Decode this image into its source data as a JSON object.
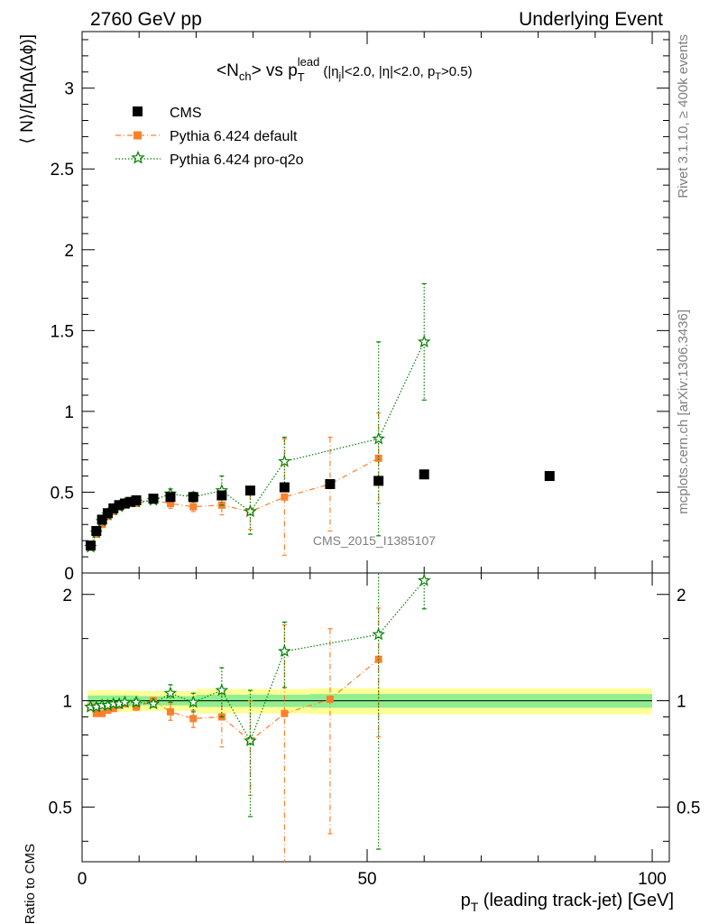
{
  "header": {
    "left": "2760 GeV pp",
    "right": "Underlying Event"
  },
  "side": {
    "rivet": "Rivet 3.1.10, ≥ 400k events",
    "mcplots": "mcplots.cern.ch [arXiv:1306.3436]"
  },
  "plot_title": {
    "main": "<N",
    "sub_ch": "ch",
    "mid": "> vs p",
    "sub_t": "T",
    "sup_lead": "lead",
    "cuts": "(|η",
    "cuts_sub": "j",
    "cuts_rest": "|<2.0, |η|<2.0, p",
    "cuts_sub2": "T",
    "cuts_end": ">0.5)"
  },
  "watermark": "CMS_2015_I1385107",
  "chart_data": [
    {
      "type": "scatter",
      "panel": "main",
      "ylabel": "⟨ N⟩/[ΔηΔ(Δϕ)]",
      "xlim": [
        0,
        103
      ],
      "ylim": [
        0,
        3.35
      ],
      "yticks": [
        0,
        0.5,
        1,
        1.5,
        2,
        2.5,
        3
      ],
      "ytick_labels": [
        "0",
        "0.5",
        "1",
        "1.5",
        "2",
        "2.5",
        "3"
      ],
      "legend_position": "top-left",
      "series": [
        {
          "name": "CMS",
          "color": "#000000",
          "marker": "square",
          "x": [
            1.5,
            2.5,
            3.5,
            4.5,
            5.5,
            6.5,
            7.5,
            8.5,
            9.5,
            12.5,
            15.5,
            19.5,
            24.5,
            29.5,
            35.5,
            43.5,
            52.0,
            60.0,
            82.0
          ],
          "y": [
            0.17,
            0.26,
            0.33,
            0.37,
            0.4,
            0.42,
            0.43,
            0.44,
            0.45,
            0.46,
            0.47,
            0.47,
            0.48,
            0.51,
            0.53,
            0.55,
            0.57,
            0.61,
            0.6
          ]
        },
        {
          "name": "Pythia 6.424 default",
          "color": "#ff7f2a",
          "marker": "square-small",
          "line": "dash-dot",
          "x": [
            1.5,
            2.5,
            3.5,
            4.5,
            5.5,
            6.5,
            7.5,
            9.5,
            12.5,
            15.5,
            19.5,
            24.5,
            29.5,
            35.5,
            43.5,
            52.0
          ],
          "y": [
            0.16,
            0.24,
            0.3,
            0.35,
            0.38,
            0.41,
            0.42,
            0.43,
            0.45,
            0.43,
            0.41,
            0.42,
            0.38,
            0.47,
            0.55,
            0.71
          ],
          "yerr": [
            0.005,
            0.005,
            0.005,
            0.005,
            0.005,
            0.005,
            0.005,
            0.01,
            0.01,
            0.03,
            0.03,
            0.06,
            0.11,
            0.36,
            0.29,
            0.28
          ]
        },
        {
          "name": "Pythia 6.424 pro-q2o",
          "color": "#008000",
          "marker": "star",
          "line": "dotted",
          "x": [
            1.5,
            2.5,
            3.5,
            4.5,
            5.5,
            6.5,
            7.5,
            9.5,
            12.5,
            15.5,
            19.5,
            24.5,
            29.5,
            35.5,
            52.0,
            60.0
          ],
          "y": [
            0.16,
            0.25,
            0.32,
            0.36,
            0.39,
            0.41,
            0.43,
            0.44,
            0.45,
            0.49,
            0.47,
            0.51,
            0.38,
            0.69,
            0.83,
            1.43
          ],
          "yerr": [
            0.005,
            0.005,
            0.005,
            0.005,
            0.005,
            0.005,
            0.005,
            0.01,
            0.01,
            0.03,
            0.03,
            0.09,
            0.14,
            0.15,
            0.6,
            0.36
          ]
        }
      ]
    },
    {
      "type": "scatter",
      "panel": "ratio",
      "ylabel": "Ratio to CMS",
      "xlabel": "p_T (leading track-jet) [GeV]",
      "xlim": [
        0,
        103
      ],
      "ylim": [
        0.35,
        2.3
      ],
      "xticks": [
        0,
        50,
        100
      ],
      "xtick_labels": [
        "0",
        "50",
        "100"
      ],
      "yticks": [
        0.5,
        1,
        2
      ],
      "ytick_labels": [
        "0.5",
        "1",
        "2"
      ],
      "bands": {
        "inner_color": "#90ee90",
        "outer_color": "#ffff99",
        "inner": [
          [
            1.0,
            0.035
          ],
          [
            10,
            0.03
          ],
          [
            20,
            0.04
          ],
          [
            40,
            0.045
          ],
          [
            100,
            0.05
          ]
        ],
        "outer": [
          [
            1.0,
            0.07
          ],
          [
            10,
            0.065
          ],
          [
            20,
            0.08
          ],
          [
            40,
            0.085
          ],
          [
            100,
            0.09
          ]
        ]
      },
      "series": [
        {
          "name": "Pythia 6.424 default",
          "color": "#ff7f2a",
          "marker": "square-small",
          "line": "dash-dot",
          "x": [
            1.5,
            2.5,
            3.5,
            4.5,
            5.5,
            6.5,
            7.5,
            9.5,
            12.5,
            15.5,
            19.5,
            24.5,
            29.5,
            35.5,
            43.5,
            52.0
          ],
          "y": [
            0.96,
            0.92,
            0.92,
            0.94,
            0.95,
            0.97,
            0.98,
            0.96,
            1.0,
            0.93,
            0.89,
            0.9,
            0.77,
            0.92,
            1.01,
            1.31
          ],
          "yerr": [
            0.01,
            0.01,
            0.01,
            0.01,
            0.01,
            0.01,
            0.01,
            0.02,
            0.02,
            0.05,
            0.05,
            0.16,
            0.23,
            0.72,
            0.59,
            0.52
          ]
        },
        {
          "name": "Pythia 6.424 pro-q2o",
          "color": "#008000",
          "marker": "star",
          "line": "dotted",
          "x": [
            1.5,
            2.5,
            3.5,
            4.5,
            5.5,
            6.5,
            7.5,
            9.5,
            12.5,
            15.5,
            19.5,
            24.5,
            29.5,
            35.5,
            52.0,
            60.0
          ],
          "y": [
            0.96,
            0.96,
            0.97,
            0.97,
            0.98,
            0.98,
            0.99,
            0.99,
            0.98,
            1.05,
            0.99,
            1.07,
            0.77,
            1.38,
            1.54,
            2.19
          ],
          "yerr": [
            0.01,
            0.01,
            0.01,
            0.01,
            0.01,
            0.01,
            0.01,
            0.02,
            0.02,
            0.06,
            0.06,
            0.17,
            0.3,
            0.29,
            1.16,
            0.37
          ]
        }
      ]
    }
  ]
}
